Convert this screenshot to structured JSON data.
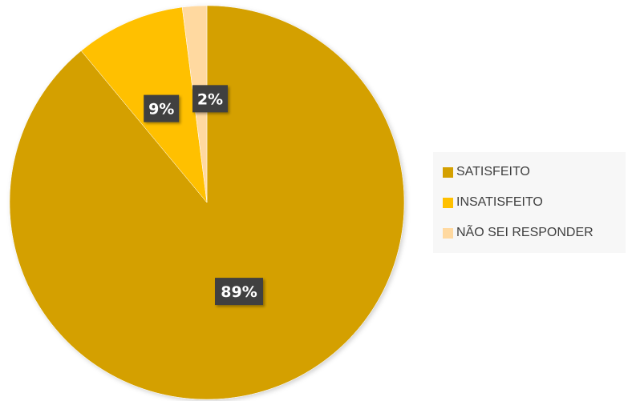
{
  "chart_data": {
    "type": "pie",
    "categories": [
      "SATISFEITO",
      "INSATISFEITO",
      "NÃO SEI RESPONDER"
    ],
    "values": [
      89,
      9,
      2
    ],
    "data_labels": [
      "89%",
      "9%",
      "2%"
    ],
    "colors": [
      "#d4a000",
      "#ffc000",
      "#ffd9a0"
    ],
    "title": "",
    "legend": {
      "position": "right"
    }
  }
}
